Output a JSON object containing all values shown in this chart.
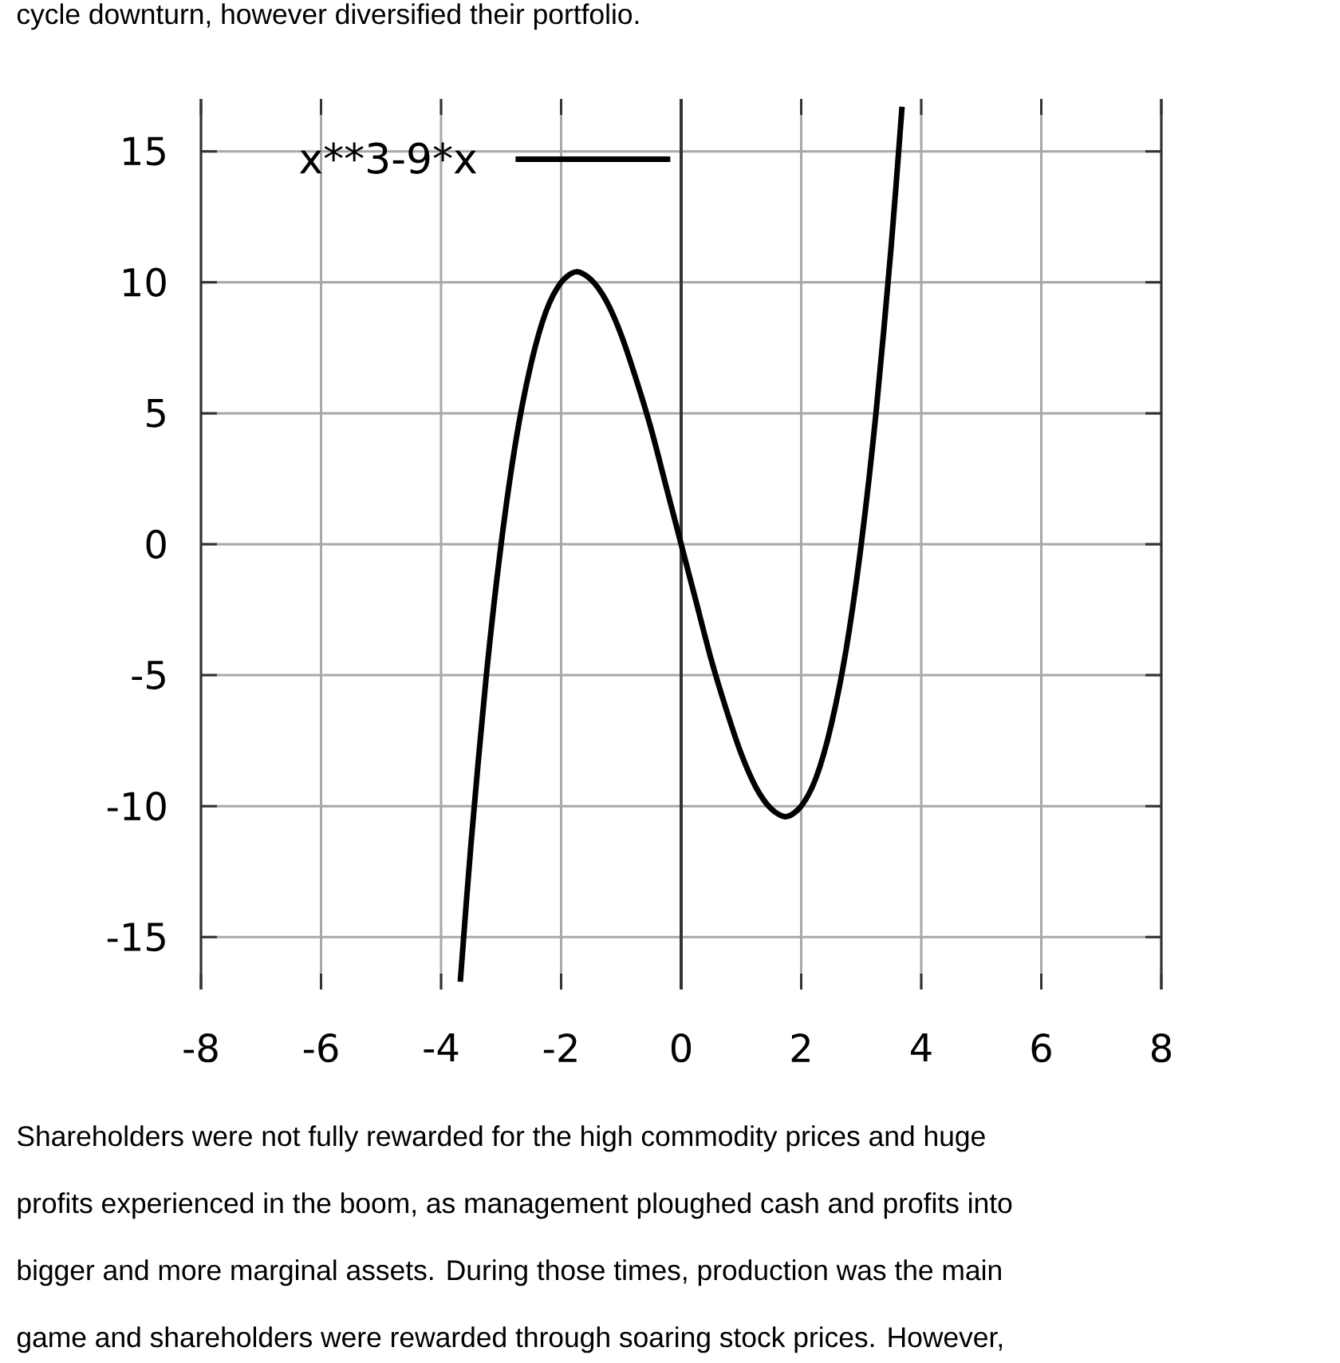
{
  "chart_data": {
    "type": "line",
    "annotations": [
      "cycle downturn, however diversified their portfolio.",
      "Shareholders were not fully rewarded for the high commodity prices and huge",
      "profits experienced in the boom, as management ploughed cash and profits into",
      "bigger and more marginal assets. During those times, production was the main",
      "game and shareholders were rewarded through soaring stock prices. However,"
    ],
    "x": [
      -3.68,
      -3.5,
      -3.25,
      -3,
      -2.75,
      -2.5,
      -2.25,
      -2,
      -1.75,
      -1.5,
      -1.25,
      -1,
      -0.75,
      -0.5,
      -0.25,
      0,
      0.25,
      0.5,
      0.75,
      1,
      1.25,
      1.5,
      1.75,
      2,
      2.25,
      2.5,
      2.75,
      3,
      3.25,
      3.5,
      3.68
    ],
    "series": [
      {
        "name": "x**3-9*x",
        "color": "#000000",
        "values": [
          -16.7,
          -11.4,
          -5.1,
          0,
          4.0,
          6.9,
          8.9,
          10,
          10.4,
          10.1,
          9.3,
          8,
          6.3,
          4.4,
          2.2,
          0,
          -2.2,
          -4.4,
          -6.3,
          -8,
          -9.3,
          -10.1,
          -10.4,
          -10,
          -8.9,
          -6.9,
          -4.0,
          0,
          5.1,
          11.4,
          16.7
        ]
      }
    ],
    "xlim": [
      -8,
      8
    ],
    "ylim": [
      -17,
      17
    ],
    "xticks": [
      -8,
      -6,
      -4,
      -2,
      0,
      2,
      4,
      6,
      8
    ],
    "yticks": [
      -15,
      -10,
      -5,
      0,
      5,
      10,
      15
    ],
    "grid": true,
    "legend": "top left",
    "ref_lines": [
      {
        "axis": "x",
        "value": 0,
        "color": "#333333"
      }
    ]
  }
}
